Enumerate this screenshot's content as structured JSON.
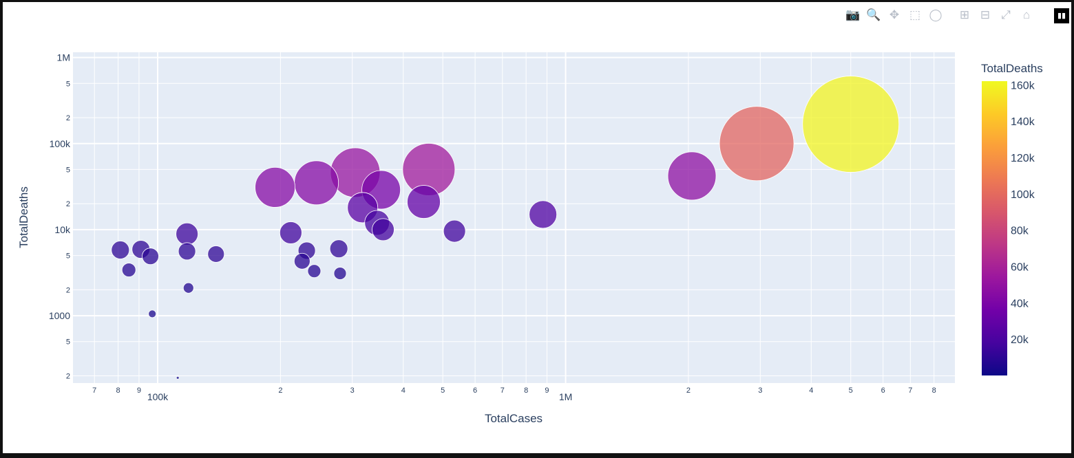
{
  "modebar": {
    "buttons": [
      {
        "name": "camera-icon",
        "glyph": "📷",
        "active": false
      },
      {
        "name": "zoom-icon",
        "glyph": "🔍",
        "active": true
      },
      {
        "name": "pan-icon",
        "glyph": "✥",
        "active": false
      },
      {
        "name": "box-select-icon",
        "glyph": "⬚",
        "active": false
      },
      {
        "name": "lasso-icon",
        "glyph": "◯",
        "active": false
      },
      {
        "name": "zoom-in-icon",
        "glyph": "⊞",
        "active": false
      },
      {
        "name": "zoom-out-icon",
        "glyph": "⊟",
        "active": false
      },
      {
        "name": "autoscale-icon",
        "glyph": "⤢",
        "active": false
      },
      {
        "name": "home-icon",
        "glyph": "⌂",
        "active": false
      }
    ],
    "logo_icon": "plotly-logo-icon"
  },
  "chart_data": {
    "type": "scatter",
    "mode": "bubble",
    "xlabel": "TotalCases",
    "ylabel": "TotalDeaths",
    "xscale": "log",
    "yscale": "log",
    "xlim": [
      62000,
      9000000
    ],
    "ylim": [
      165,
      1150000
    ],
    "x_major_ticks": [
      {
        "v": 100000,
        "label": "100k"
      },
      {
        "v": 1000000,
        "label": "1M"
      }
    ],
    "x_minor_ticks": [
      {
        "v": 70000,
        "label": "7"
      },
      {
        "v": 80000,
        "label": "8"
      },
      {
        "v": 90000,
        "label": "9"
      },
      {
        "v": 200000,
        "label": "2"
      },
      {
        "v": 300000,
        "label": "3"
      },
      {
        "v": 400000,
        "label": "4"
      },
      {
        "v": 500000,
        "label": "5"
      },
      {
        "v": 600000,
        "label": "6"
      },
      {
        "v": 700000,
        "label": "7"
      },
      {
        "v": 800000,
        "label": "8"
      },
      {
        "v": 900000,
        "label": "9"
      },
      {
        "v": 2000000,
        "label": "2"
      },
      {
        "v": 3000000,
        "label": "3"
      },
      {
        "v": 4000000,
        "label": "4"
      },
      {
        "v": 5000000,
        "label": "5"
      },
      {
        "v": 6000000,
        "label": "6"
      },
      {
        "v": 7000000,
        "label": "7"
      },
      {
        "v": 8000000,
        "label": "8"
      }
    ],
    "y_major_ticks": [
      {
        "v": 1000,
        "label": "1000"
      },
      {
        "v": 10000,
        "label": "10k"
      },
      {
        "v": 100000,
        "label": "100k"
      },
      {
        "v": 1000000,
        "label": "1M"
      }
    ],
    "y_minor_ticks": [
      {
        "v": 200,
        "label": "2"
      },
      {
        "v": 500,
        "label": "5"
      },
      {
        "v": 2000,
        "label": "2"
      },
      {
        "v": 5000,
        "label": "5"
      },
      {
        "v": 20000,
        "label": "2"
      },
      {
        "v": 50000,
        "label": "5"
      },
      {
        "v": 200000,
        "label": "2"
      },
      {
        "v": 500000,
        "label": "5"
      }
    ],
    "colorbar": {
      "title": "TotalDeaths",
      "range": [
        0,
        162000
      ],
      "ticks": [
        {
          "v": 20000,
          "label": "20k"
        },
        {
          "v": 40000,
          "label": "40k"
        },
        {
          "v": 60000,
          "label": "60k"
        },
        {
          "v": 80000,
          "label": "80k"
        },
        {
          "v": 100000,
          "label": "100k"
        },
        {
          "v": 120000,
          "label": "120k"
        },
        {
          "v": 140000,
          "label": "140k"
        },
        {
          "v": 160000,
          "label": "160k"
        }
      ]
    },
    "colorscale": [
      "#0d0887",
      "#46039f",
      "#7201a8",
      "#9c179e",
      "#bd3786",
      "#d8576b",
      "#ed7953",
      "#fb9f3a",
      "#fdca26",
      "#f0f921"
    ],
    "points": [
      {
        "x": 81000,
        "y": 5800,
        "color_value": 10000,
        "size": 26
      },
      {
        "x": 85000,
        "y": 3400,
        "color_value": 8000,
        "size": 20
      },
      {
        "x": 91000,
        "y": 5900,
        "color_value": 10000,
        "size": 26
      },
      {
        "x": 96000,
        "y": 4900,
        "color_value": 9000,
        "size": 24
      },
      {
        "x": 97000,
        "y": 1050,
        "color_value": 4000,
        "size": 11
      },
      {
        "x": 112000,
        "y": 190,
        "color_value": 1000,
        "size": 4
      },
      {
        "x": 118000,
        "y": 8900,
        "color_value": 15000,
        "size": 32
      },
      {
        "x": 118000,
        "y": 5600,
        "color_value": 10000,
        "size": 25
      },
      {
        "x": 119000,
        "y": 2100,
        "color_value": 6000,
        "size": 15
      },
      {
        "x": 139000,
        "y": 5200,
        "color_value": 10000,
        "size": 24
      },
      {
        "x": 194000,
        "y": 31000,
        "color_value": 44000,
        "size": 58
      },
      {
        "x": 212000,
        "y": 9200,
        "color_value": 16000,
        "size": 32
      },
      {
        "x": 226000,
        "y": 4300,
        "color_value": 9000,
        "size": 23
      },
      {
        "x": 232000,
        "y": 5700,
        "color_value": 10000,
        "size": 25
      },
      {
        "x": 242000,
        "y": 3300,
        "color_value": 8000,
        "size": 19
      },
      {
        "x": 245000,
        "y": 35000,
        "color_value": 44000,
        "size": 64
      },
      {
        "x": 278000,
        "y": 6000,
        "color_value": 11000,
        "size": 26
      },
      {
        "x": 280000,
        "y": 3100,
        "color_value": 7000,
        "size": 18
      },
      {
        "x": 305000,
        "y": 46000,
        "color_value": 52000,
        "size": 72
      },
      {
        "x": 318000,
        "y": 18000,
        "color_value": 26000,
        "size": 44
      },
      {
        "x": 345000,
        "y": 12000,
        "color_value": 18000,
        "size": 36
      },
      {
        "x": 353000,
        "y": 29000,
        "color_value": 38000,
        "size": 56
      },
      {
        "x": 357000,
        "y": 10000,
        "color_value": 17000,
        "size": 32
      },
      {
        "x": 449000,
        "y": 21000,
        "color_value": 30000,
        "size": 48
      },
      {
        "x": 462000,
        "y": 50000,
        "color_value": 56000,
        "size": 76
      },
      {
        "x": 534000,
        "y": 9600,
        "color_value": 16000,
        "size": 32
      },
      {
        "x": 880000,
        "y": 15000,
        "color_value": 22000,
        "size": 40
      },
      {
        "x": 2040000,
        "y": 42000,
        "color_value": 48000,
        "size": 70
      },
      {
        "x": 2940000,
        "y": 100000,
        "color_value": 98000,
        "size": 108
      },
      {
        "x": 5000000,
        "y": 168000,
        "color_value": 160000,
        "size": 140
      }
    ]
  }
}
